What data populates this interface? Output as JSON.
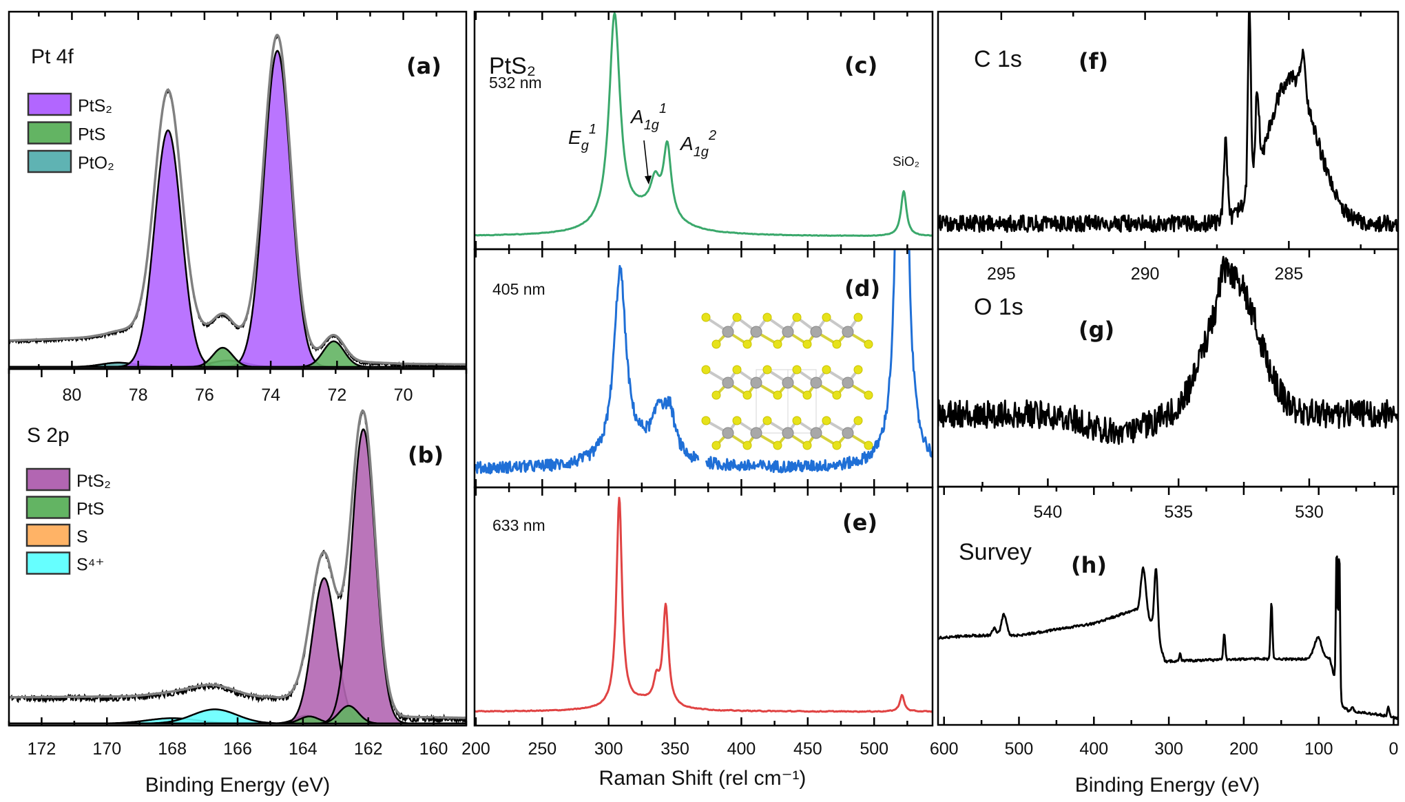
{
  "chart_data": [
    {
      "id": "a",
      "type": "area",
      "letter": "(a)",
      "title": "Pt 4f",
      "xlim": [
        81.9,
        68.1
      ],
      "ylim": [
        0,
        1
      ],
      "xticks": [
        80,
        78,
        76,
        74,
        72,
        70
      ],
      "minor_step": 1,
      "xlabel": "",
      "legend": [
        {
          "label": "PtS₂",
          "color": "#b266ff"
        },
        {
          "label": "PtS",
          "color": "#63b463"
        },
        {
          "label": "PtO₂",
          "color": "#5fb3b3"
        }
      ],
      "background": [
        [
          81.9,
          0.07
        ],
        [
          79,
          0.08
        ],
        [
          78.3,
          0.09
        ],
        [
          77.1,
          0.11
        ],
        [
          75.5,
          0.075
        ],
        [
          74.5,
          0.06
        ],
        [
          73.8,
          0.04
        ],
        [
          72.5,
          0.015
        ],
        [
          70,
          0.005
        ],
        [
          68.1,
          0.003
        ]
      ],
      "components": [
        {
          "species": "PtO₂",
          "center": 78.6,
          "amp": 0.012,
          "fwhm": 1.2
        },
        {
          "species": "PtO₂",
          "center": 75.3,
          "amp": 0.018,
          "fwhm": 1.2
        },
        {
          "species": "PtS₂",
          "center": 77.1,
          "amp": 0.666,
          "fwhm": 0.95
        },
        {
          "species": "PtS₂",
          "center": 73.8,
          "amp": 0.89,
          "fwhm": 0.95
        },
        {
          "species": "PtS",
          "center": 75.45,
          "amp": 0.054,
          "fwhm": 0.7
        },
        {
          "species": "PtS",
          "center": 72.1,
          "amp": 0.072,
          "fwhm": 0.75
        }
      ],
      "noise": 0.004
    },
    {
      "id": "b",
      "type": "area",
      "letter": "(b)",
      "title": "S 2p",
      "xlim": [
        173.0,
        159.0
      ],
      "ylim": [
        0,
        1
      ],
      "xticks": [
        172,
        170,
        168,
        166,
        164,
        162,
        160
      ],
      "minor_step": 1,
      "xlabel": "Binding Energy (eV)",
      "legend": [
        {
          "label": "PtS₂",
          "color": "#b266b2"
        },
        {
          "label": "PtS",
          "color": "#63b463"
        },
        {
          "label": "S",
          "color": "#ffb366"
        },
        {
          "label": "S⁴⁺",
          "color": "#66ffff"
        }
      ],
      "background": [
        [
          173,
          0.07
        ],
        [
          170,
          0.072
        ],
        [
          168,
          0.065
        ],
        [
          166.5,
          0.06
        ],
        [
          165,
          0.07
        ],
        [
          163.8,
          0.06
        ],
        [
          162.2,
          0.03
        ],
        [
          161,
          0.015
        ],
        [
          159,
          0.012
        ]
      ],
      "components": [
        {
          "species": "S⁴⁺",
          "center": 168.0,
          "amp": 0.015,
          "fwhm": 1.8
        },
        {
          "species": "S⁴⁺",
          "center": 166.7,
          "amp": 0.04,
          "fwhm": 1.6
        },
        {
          "species": "S",
          "center": 163.9,
          "amp": 0.022,
          "fwhm": 0.8
        },
        {
          "species": "PtS₂",
          "center": 163.35,
          "amp": 0.41,
          "fwhm": 0.85
        },
        {
          "species": "PtS₂",
          "center": 162.15,
          "amp": 0.83,
          "fwhm": 0.85
        },
        {
          "species": "PtS",
          "center": 163.8,
          "amp": 0.02,
          "fwhm": 0.7
        },
        {
          "species": "PtS",
          "center": 162.6,
          "amp": 0.05,
          "fwhm": 0.7
        }
      ],
      "noise": 0.009
    },
    {
      "id": "c",
      "type": "line",
      "letter": "(c)",
      "title": "PtS₂",
      "subtitle": "532 nm",
      "color": "#3aa86b",
      "xlim": [
        199,
        544
      ],
      "ylim": [
        0,
        1
      ],
      "xticks": [
        200,
        250,
        300,
        350,
        400,
        450,
        500
      ],
      "minor_step": 25,
      "show_tick_labels": false,
      "annotations": {
        "eg": [
          "E",
          "g",
          "1"
        ],
        "a1g1": [
          "A",
          "1g",
          "1"
        ],
        "a1g2": [
          "A",
          "1g",
          "2"
        ],
        "sio2": "SiO₂"
      },
      "baseline": 0.045,
      "peaks": [
        [
          304.5,
          0.9,
          10
        ],
        [
          330,
          0.1,
          45
        ],
        [
          335,
          0.12,
          8
        ],
        [
          344.2,
          0.3,
          7
        ],
        [
          522.3,
          0.19,
          5
        ]
      ],
      "noise": 0.002
    },
    {
      "id": "d",
      "type": "line",
      "letter": "(d)",
      "subtitle": "405 nm",
      "color": "#1f6fd6",
      "xlim": [
        199,
        544
      ],
      "ylim": [
        0,
        1
      ],
      "xticks": [
        200,
        250,
        300,
        350,
        400,
        450,
        500
      ],
      "minor_step": 25,
      "show_tick_labels": false,
      "baseline": 0.07,
      "gap": [
        368,
        373
      ],
      "peaks": [
        [
          308.6,
          0.8,
          11
        ],
        [
          330,
          0.08,
          40
        ],
        [
          338,
          0.15,
          9
        ],
        [
          346,
          0.18,
          10
        ],
        [
          521,
          4.0,
          6
        ]
      ],
      "noise": 0.025
    },
    {
      "id": "e",
      "type": "line",
      "letter": "(e)",
      "subtitle": "633 nm",
      "color": "#e04343",
      "xlim": [
        199,
        544
      ],
      "ylim": [
        0,
        1
      ],
      "xticks": [
        200,
        250,
        300,
        350,
        400,
        450,
        500
      ],
      "minor_step": 25,
      "xlabel": "Raman Shift (rel cm⁻¹)",
      "baseline": 0.05,
      "peaks": [
        [
          308,
          0.88,
          5
        ],
        [
          325,
          0.04,
          40
        ],
        [
          336,
          0.09,
          5
        ],
        [
          343,
          0.42,
          5
        ],
        [
          521,
          0.07,
          4
        ]
      ],
      "noise": 0.003
    },
    {
      "id": "f",
      "type": "line",
      "letter": "(f)",
      "title": "C 1s",
      "color": "#000000",
      "xlim": [
        297.2,
        281.2
      ],
      "ylim": [
        0,
        1
      ],
      "xticks": [
        295,
        290,
        285
      ],
      "minor_step": 2.5,
      "baseline": 0.1,
      "peaks": [
        [
          287.2,
          0.32,
          0.15
        ],
        [
          286.37,
          0.8,
          0.12
        ],
        [
          286.1,
          0.35,
          0.15
        ],
        [
          284.9,
          0.62,
          2.0
        ],
        [
          284.5,
          0.15,
          0.2
        ]
      ],
      "noise": 0.035
    },
    {
      "id": "g",
      "type": "line",
      "letter": "(g)",
      "title": "O 1s",
      "color": "#000000",
      "xlim": [
        544.2,
        526.6
      ],
      "ylim": [
        0,
        1
      ],
      "xticks": [
        540,
        535,
        530
      ],
      "minor_step": 2.5,
      "baseline": 0.3,
      "peaks": [
        [
          532.9,
          0.58,
          2.2
        ],
        [
          537.3,
          -0.08,
          2.5
        ],
        [
          533.3,
          0.08,
          0.3
        ]
      ],
      "noise": 0.06
    },
    {
      "id": "h",
      "type": "line",
      "letter": "(h)",
      "title": "Survey",
      "color": "#000000",
      "xlim": [
        608,
        -6
      ],
      "ylim": [
        0,
        1
      ],
      "xticks": [
        600,
        500,
        400,
        300,
        200,
        100,
        0
      ],
      "minor_step": 50,
      "xlabel": "Binding Energy (eV)",
      "background": [
        [
          608,
          0.36
        ],
        [
          560,
          0.37
        ],
        [
          500,
          0.37
        ],
        [
          400,
          0.42
        ],
        [
          345,
          0.48
        ],
        [
          320,
          0.42
        ],
        [
          305,
          0.26
        ],
        [
          200,
          0.27
        ],
        [
          85,
          0.27
        ],
        [
          71,
          0.08
        ],
        [
          60,
          0.05
        ],
        [
          20,
          0.035
        ],
        [
          -6,
          0.02
        ]
      ],
      "peaks": [
        [
          533,
          0.03,
          6
        ],
        [
          520,
          0.09,
          8
        ],
        [
          334,
          0.2,
          8
        ],
        [
          317,
          0.27,
          5
        ],
        [
          285,
          0.03,
          3
        ],
        [
          226,
          0.11,
          3
        ],
        [
          163,
          0.24,
          3
        ],
        [
          101,
          0.09,
          12
        ],
        [
          76,
          0.6,
          2.5
        ],
        [
          72.5,
          0.63,
          2.5
        ],
        [
          55,
          0.02,
          4
        ],
        [
          7,
          0.04,
          3
        ]
      ],
      "noise": 0.005
    }
  ]
}
